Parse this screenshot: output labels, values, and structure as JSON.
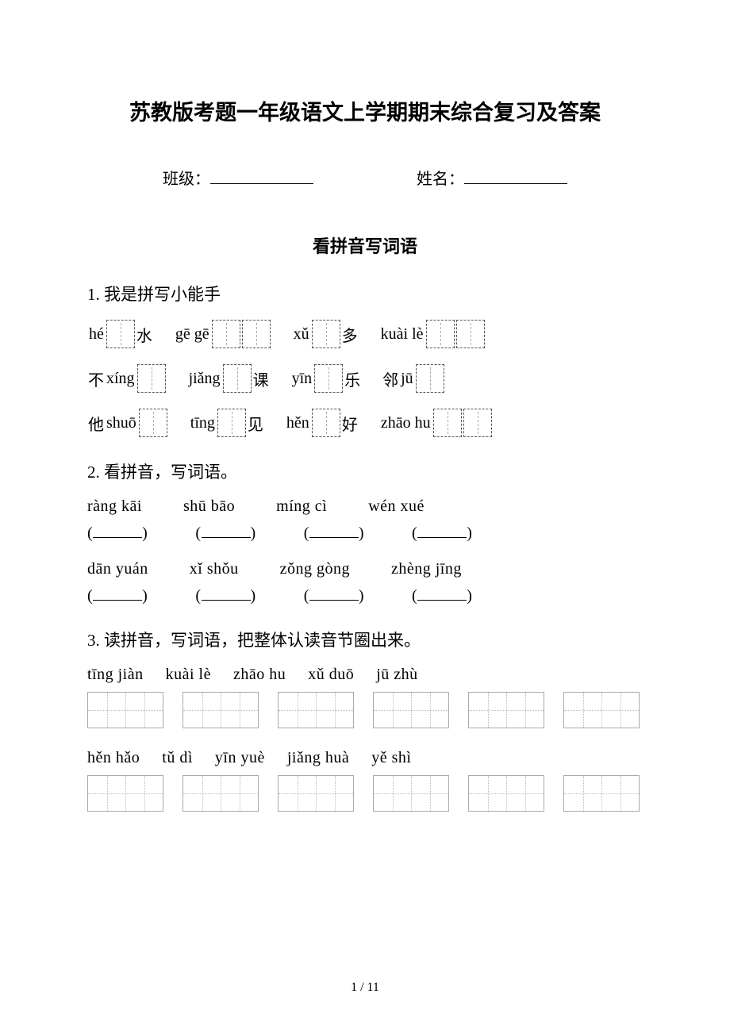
{
  "title": "苏教版考题一年级语文上学期期末综合复习及答案",
  "meta": {
    "class_label": "班级：",
    "name_label": "姓名："
  },
  "section_heading": "看拼音写词语",
  "q1": {
    "number": "1.",
    "title": "我是拼写小能手",
    "rows": [
      [
        {
          "pre_pinyin": "hé",
          "boxes": 1,
          "post_char": "水"
        },
        {
          "pre_pinyin": "gē gē",
          "boxes": 2
        },
        {
          "pre_pinyin": "xǔ",
          "boxes": 1,
          "post_char": "多"
        },
        {
          "pre_pinyin": "kuài lè",
          "boxes": 2
        }
      ],
      [
        {
          "pre_char": "不",
          "pre_pinyin": "xíng",
          "boxes": 1
        },
        {
          "pre_pinyin": "jiǎng",
          "boxes": 1,
          "post_char": "课"
        },
        {
          "pre_pinyin": "yīn",
          "boxes": 1,
          "post_char": "乐"
        },
        {
          "pre_char": "邻",
          "pre_pinyin": "jū",
          "boxes": 1
        }
      ],
      [
        {
          "pre_char": "他",
          "pre_pinyin": "shuō",
          "boxes": 1
        },
        {
          "pre_pinyin": "tīng",
          "boxes": 1,
          "post_char": "见"
        },
        {
          "pre_pinyin": "hěn",
          "boxes": 1,
          "post_char": "好"
        },
        {
          "pre_pinyin": "zhāo hu",
          "boxes": 2
        }
      ]
    ]
  },
  "q2": {
    "number": "2.",
    "title": "看拼音，写词语。",
    "row1_pinyin": [
      "ràng kāi",
      "shū bāo",
      "míng cì",
      "wén xué"
    ],
    "row2_pinyin": [
      "dān yuán",
      "xǐ shǒu",
      "zǒng gòng",
      "zhèng jīng"
    ]
  },
  "q3": {
    "number": "3.",
    "title": "读拼音，写词语，把整体认读音节圈出来。",
    "row1_pinyin": [
      "tīng jiàn",
      "kuài lè",
      "zhāo hu",
      "xǔ duō",
      "jū zhù"
    ],
    "row1_extra_box": true,
    "row2_pinyin": [
      "hěn hǎo",
      "tǔ dì",
      "yīn yuè",
      "jiǎng huà",
      "yě shì"
    ],
    "row2_extra_box": true
  },
  "footer": "1 / 11"
}
